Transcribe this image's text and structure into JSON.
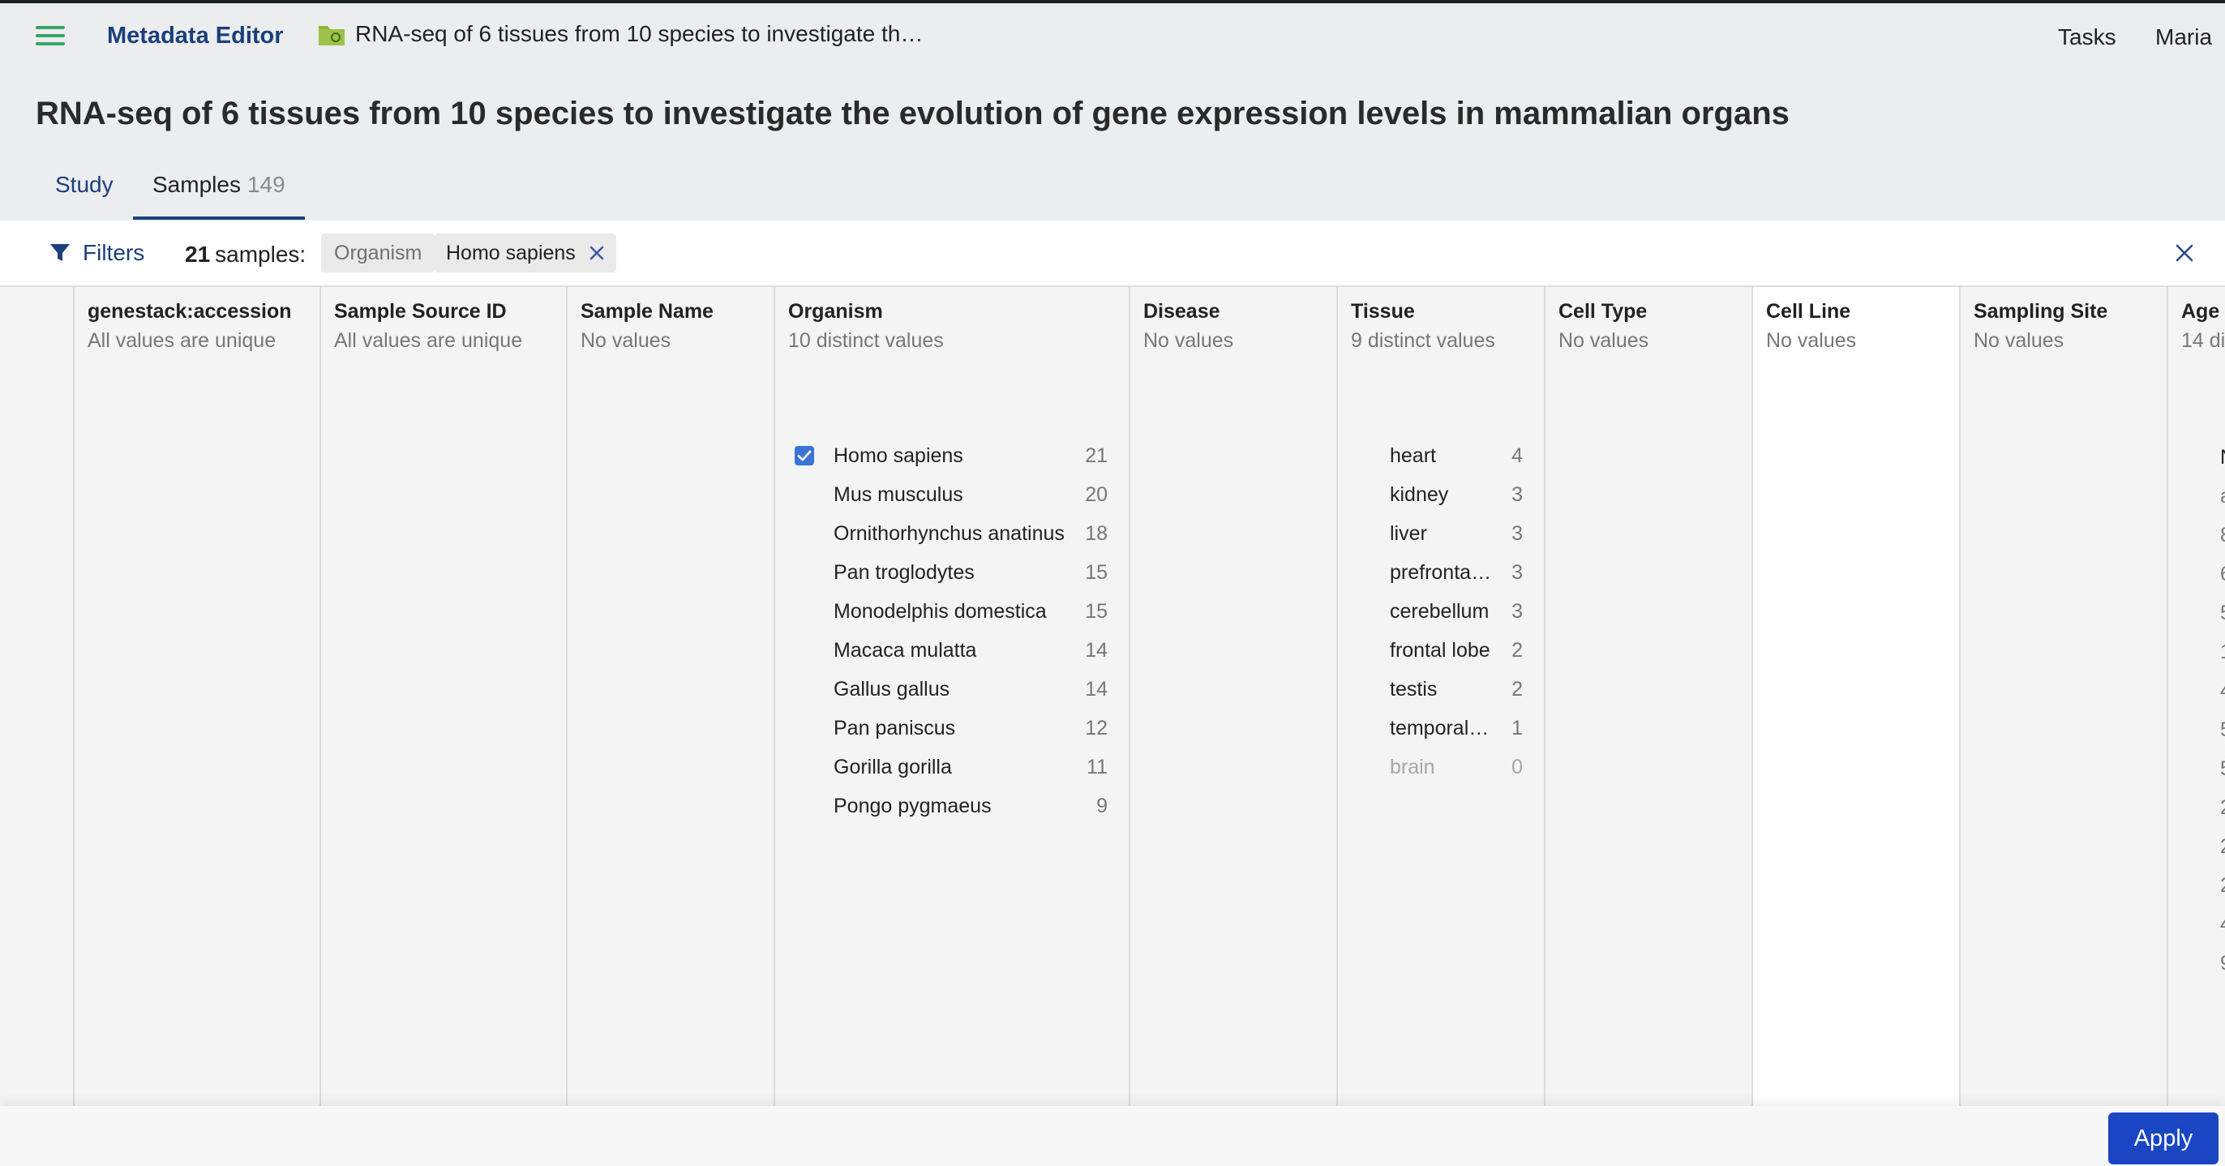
{
  "header": {
    "app_title": "Metadata Editor",
    "breadcrumb": "RNA-seq of 6 tissues from 10 species to investigate th…",
    "tasks": "Tasks",
    "user": "Maria"
  },
  "page_title": "RNA-seq of 6 tissues from 10 species to investigate the evolution of gene expression levels in mammalian organs",
  "tabs": {
    "study": "Study",
    "samples": "Samples",
    "samples_count": "149"
  },
  "filterbar": {
    "filters_label": "Filters",
    "count": "21",
    "count_suffix": "samples:",
    "chip_key": "Organism",
    "chip_value": "Homo sapiens"
  },
  "columns": [
    {
      "name": "genestack:accession",
      "sub": "All values are unique"
    },
    {
      "name": "Sample Source ID",
      "sub": "All values are unique"
    },
    {
      "name": "Sample Name",
      "sub": "No values"
    },
    {
      "name": "Organism",
      "sub": "10 distinct values"
    },
    {
      "name": "Disease",
      "sub": "No values"
    },
    {
      "name": "Tissue",
      "sub": "9 distinct values"
    },
    {
      "name": "Cell Type",
      "sub": "No values"
    },
    {
      "name": "Cell Line",
      "sub": "No values"
    },
    {
      "name": "Sampling Site",
      "sub": "No values"
    },
    {
      "name": "Age",
      "sub": "14 di"
    }
  ],
  "organism_values": [
    {
      "label": "Homo sapiens",
      "count": "21",
      "checked": true
    },
    {
      "label": "Mus musculus",
      "count": "20"
    },
    {
      "label": "Ornithorhynchus anatinus",
      "count": "18"
    },
    {
      "label": "Pan troglodytes",
      "count": "15"
    },
    {
      "label": "Monodelphis domestica",
      "count": "15"
    },
    {
      "label": "Macaca mulatta",
      "count": "14"
    },
    {
      "label": "Gallus gallus",
      "count": "14"
    },
    {
      "label": "Pan paniscus",
      "count": "12"
    },
    {
      "label": "Gorilla gorilla",
      "count": "11"
    },
    {
      "label": "Pongo pygmaeus",
      "count": "9"
    }
  ],
  "tissue_values": [
    {
      "label": "heart",
      "count": "4"
    },
    {
      "label": "kidney",
      "count": "3"
    },
    {
      "label": "liver",
      "count": "3"
    },
    {
      "label": "prefrontal…",
      "count": "3"
    },
    {
      "label": "cerebellum",
      "count": "3"
    },
    {
      "label": "frontal lobe",
      "count": "2"
    },
    {
      "label": "testis",
      "count": "2"
    },
    {
      "label": "temporal …",
      "count": "1"
    },
    {
      "label": "brain",
      "count": "0",
      "zero": true
    }
  ],
  "age_fragments": [
    "N",
    "a",
    "8",
    "6",
    "5",
    "1",
    "4",
    "5",
    "5",
    "2",
    "2",
    "2",
    "4",
    "9"
  ],
  "apply_label": "Apply",
  "colors": {
    "accent": "#1b3f7c",
    "apply": "#1a46c4",
    "checkbox": "#3b74d6",
    "menu_icon": "#3aa66a"
  }
}
